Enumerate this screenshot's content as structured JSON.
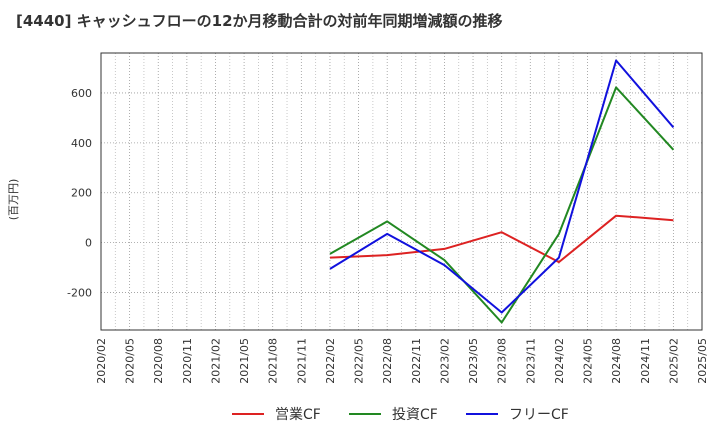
{
  "chart_data": {
    "type": "line",
    "title": "[4440]  キャッシュフローの12か月移動合計の対前年同期増減額の推移",
    "ylabel": "(百万円)",
    "ylim": [
      -350,
      760
    ],
    "yticks": [
      -200,
      0,
      200,
      400,
      600
    ],
    "x_ticks": [
      "2020/02",
      "2020/05",
      "2020/08",
      "2020/11",
      "2021/02",
      "2021/05",
      "2021/08",
      "2021/11",
      "2022/02",
      "2022/05",
      "2022/08",
      "2022/11",
      "2023/02",
      "2023/05",
      "2023/08",
      "2023/11",
      "2024/02",
      "2024/05",
      "2024/08",
      "2024/11",
      "2025/02",
      "2025/05"
    ],
    "grid": true,
    "legend_position": "bottom",
    "series": [
      {
        "name": "営業CF",
        "color": "#dd2222",
        "x": [
          "2022/02",
          "2022/08",
          "2023/02",
          "2023/08",
          "2024/02",
          "2024/08",
          "2025/02"
        ],
        "values": [
          -60,
          -50,
          -25,
          42,
          -78,
          108,
          90
        ]
      },
      {
        "name": "投資CF",
        "color": "#228822",
        "x": [
          "2022/02",
          "2022/08",
          "2023/02",
          "2023/08",
          "2024/02",
          "2024/08",
          "2025/02"
        ],
        "values": [
          -45,
          85,
          -70,
          -320,
          35,
          622,
          372
        ]
      },
      {
        "name": "フリーCF",
        "color": "#1111dd",
        "x": [
          "2022/02",
          "2022/08",
          "2023/02",
          "2023/08",
          "2024/02",
          "2024/08",
          "2025/02"
        ],
        "values": [
          -105,
          35,
          -90,
          -280,
          -60,
          730,
          462
        ]
      }
    ]
  }
}
